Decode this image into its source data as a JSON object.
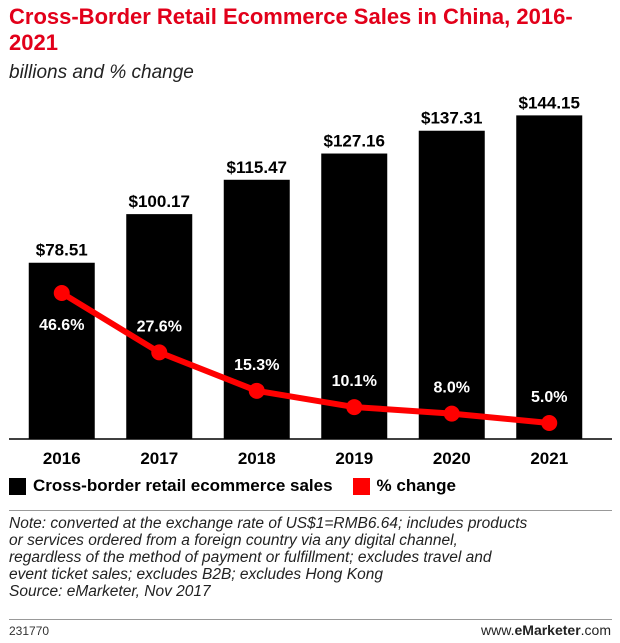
{
  "header": {
    "title": "Cross-Border Retail Ecommerce Sales in China, 2016-2021",
    "subtitle": "billions and % change"
  },
  "chart_data": {
    "type": "bar",
    "categories": [
      "2016",
      "2017",
      "2018",
      "2019",
      "2020",
      "2021"
    ],
    "series": [
      {
        "name": "Cross-border retail ecommerce sales",
        "type": "bar",
        "values": [
          78.51,
          100.17,
          115.47,
          127.16,
          137.31,
          144.15
        ],
        "labels": [
          "$78.51",
          "$100.17",
          "$115.47",
          "$127.16",
          "$137.31",
          "$144.15"
        ],
        "color": "#000000"
      },
      {
        "name": "% change",
        "type": "line",
        "values": [
          46.6,
          27.6,
          15.3,
          10.1,
          8.0,
          5.0
        ],
        "labels": [
          "46.6%",
          "27.6%",
          "15.3%",
          "10.1%",
          "8.0%",
          "5.0%"
        ],
        "color": "#ff0000"
      }
    ],
    "legend_position": "bottom-left",
    "grid": false
  },
  "legend": {
    "bars_label": "Cross-border retail ecommerce sales",
    "line_label": "% change"
  },
  "footer": {
    "note": "Note: converted at the exchange rate of US$1=RMB6.64; includes products\nor services ordered from a foreign country via any digital channel,\nregardless of the method of payment or fulfillment; excludes travel and\nevent ticket sales; excludes B2B; excludes Hong Kong\nSource: eMarketer, Nov 2017",
    "chart_id": "231770",
    "brand_prefix": "www.",
    "brand_name": "eMarketer",
    "brand_suffix": ".com"
  }
}
